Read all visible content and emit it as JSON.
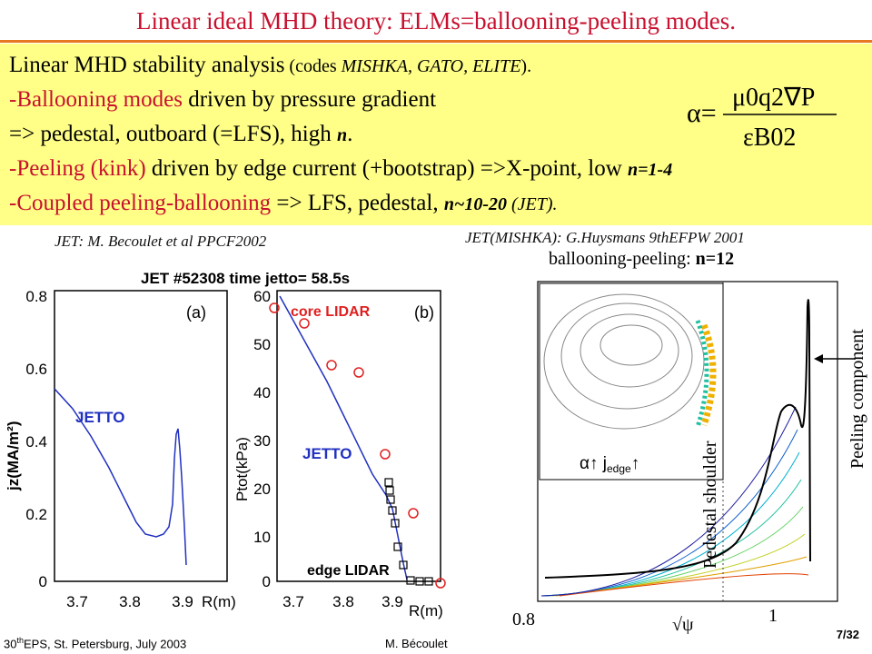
{
  "slide": {
    "title": "Linear ideal MHD theory: ELMs=ballooning-peeling modes."
  },
  "box": {
    "line1_main": "Linear MHD stability analysis",
    "line1_codes": " (codes ",
    "line1_codes_italic": "MISHKA, GATO, ELITE",
    "line1_end": ").",
    "line2_red": "-Ballooning modes",
    "line2_black": " driven by pressure gradient",
    "line3_black": "=> pedestal, outboard (=LFS), high ",
    "line3_n": "n",
    "line3_end": ".",
    "line4_red": "-Peeling (kink)",
    "line4_black": " driven by edge current (+bootstrap) =>X-point, low ",
    "line4_n": "n=1-4",
    "line5_red": "-Coupled peeling-ballooning",
    "line5_black": " => LFS, pedestal, ",
    "line5_n": "n~10-20",
    "line5_jet": " (JET)."
  },
  "formula": {
    "lhs": "α=",
    "numerator": "μ0q2∇P",
    "denominator": "εB02"
  },
  "captions": {
    "left": "JET: M. Becoulet et al PPCF2002",
    "right": "JET(MISHKA): G.Huysmans 9thEFPW 2001",
    "right_subtitle_main": "ballooning-peeling: ",
    "right_subtitle_n": "n=12"
  },
  "left_figure": {
    "header": "JET #52308  time jetto= 58.5s",
    "panel_a": "(a)",
    "panel_b": "(b)",
    "jz_label": "jz(MA/m²)",
    "ptot_label": "Ptot(kPa)",
    "x_label_a": "R(m)",
    "x_label_b": "R(m)",
    "jetto_a": "JETTO",
    "jetto_b": "JETTO",
    "core_lidar": "core LIDAR",
    "edge_lidar": "edge LIDAR",
    "a_yticks": [
      "0.8",
      "0.6",
      "0.4",
      "0.2",
      "0"
    ],
    "a_xticks": [
      "3.7",
      "3.8",
      "3.9"
    ],
    "b_yticks": [
      "60",
      "50",
      "40",
      "30",
      "20",
      "10",
      "0"
    ],
    "b_xticks": [
      "3.7",
      "3.8",
      "3.9"
    ]
  },
  "right_figure": {
    "alpha_label": "α↑  j",
    "edge_sub": "edge",
    "edge_arrow": "↑",
    "pedestal_shoulder": "Pedestal shoulder",
    "peeling_component": "Peeling component",
    "x_left": "0.8",
    "x_mid": "√ψ",
    "x_right": "1"
  },
  "footer": {
    "left_pre": "30",
    "left_sup": "th",
    "left_post": "EPS, St. Petersburg, July 2003",
    "author": "M. Bécoulet",
    "page": "7/32"
  },
  "colors": {
    "title_red": "#c8102e",
    "box_yellow": "#ffff88",
    "rule_orange": "#e87722",
    "jetto_blue": "#2030c0",
    "lidar_red": "#e02020"
  }
}
